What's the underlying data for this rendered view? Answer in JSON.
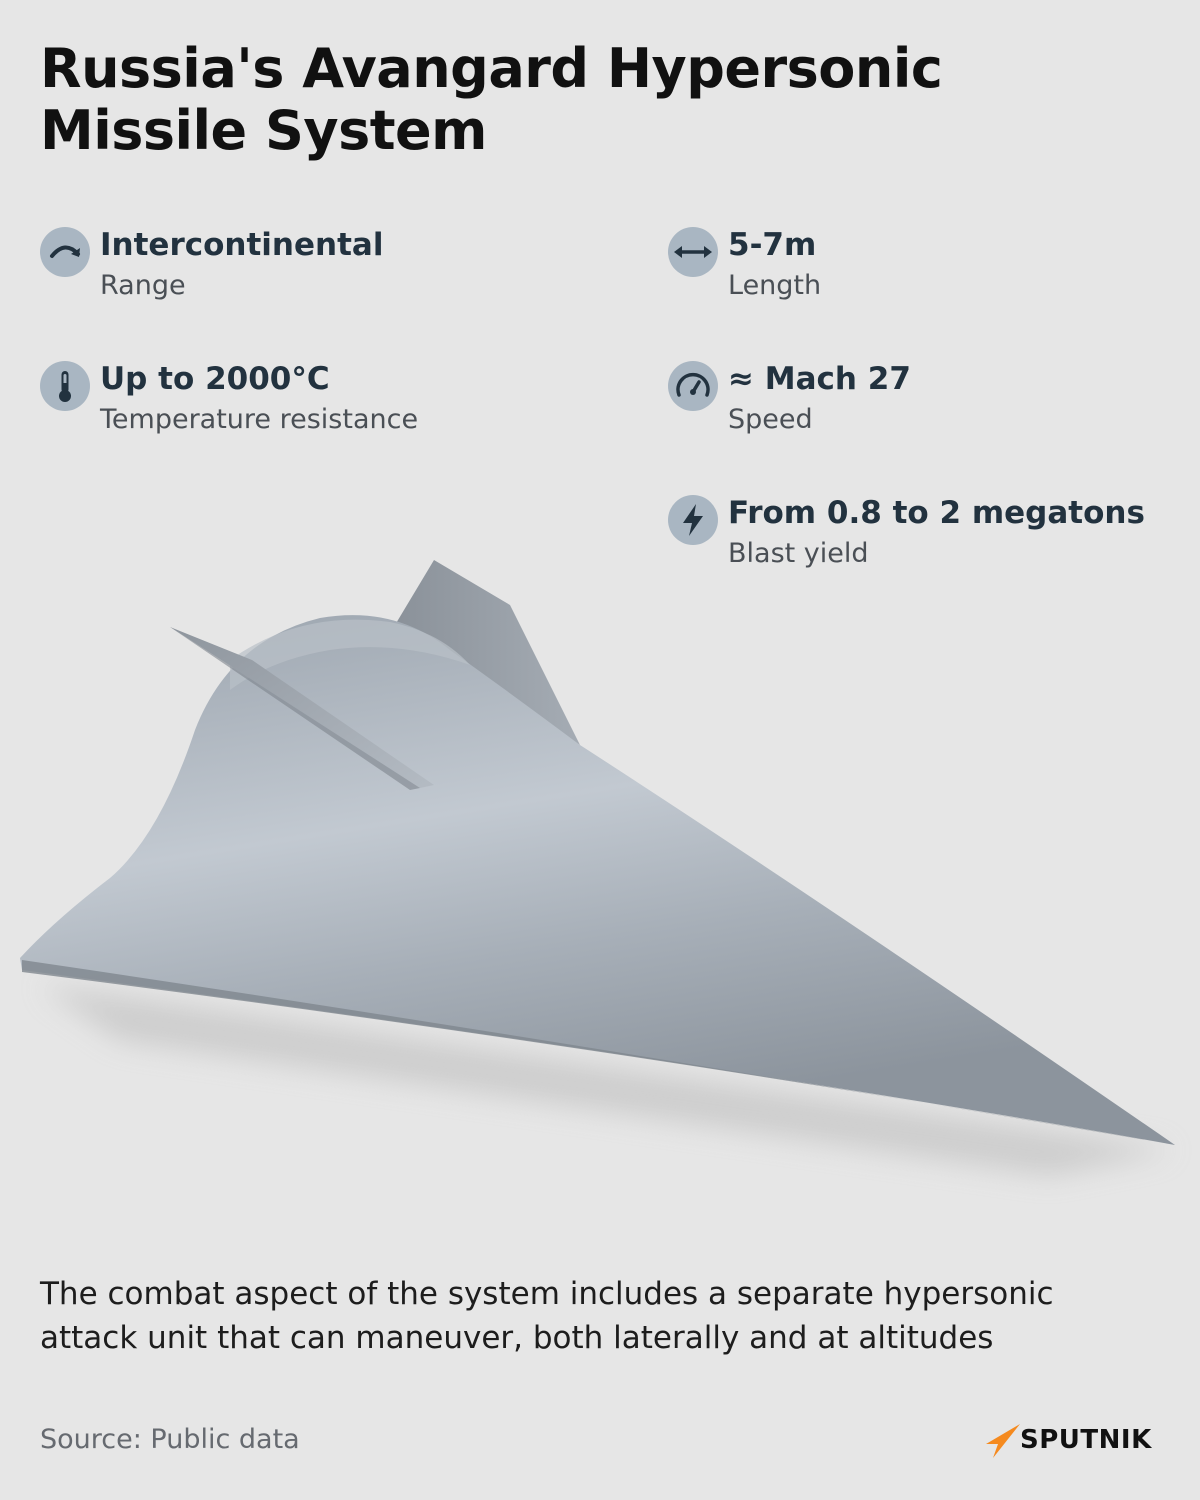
{
  "title": "Russia's Avangard Hypersonic Missile System",
  "colors": {
    "background": "#e6e6e6",
    "icon_circle": "#a9b6c2",
    "icon_glyph": "#22323f",
    "brand_accent": "#f58a1f"
  },
  "stats": [
    {
      "icon": "arc-arrow-icon",
      "value": "Intercontinental",
      "label": "Range"
    },
    {
      "icon": "double-arrow-icon",
      "value": "5-7m",
      "label": "Length"
    },
    {
      "icon": "thermometer-icon",
      "value": "Up to 2000°C",
      "label": "Temperature resistance"
    },
    {
      "icon": "speedometer-icon",
      "value": "≈ Mach 27",
      "label": "Speed"
    },
    {
      "icon": "lightning-icon",
      "value": "From 0.8 to 2 megatons",
      "label": "Blast yield"
    }
  ],
  "description": "The combat aspect of the system includes a separate hypersonic attack unit that can maneuver, both laterally and at altitudes",
  "source": "Source: Public data",
  "brand": {
    "name": "SPUTNIK",
    "icon": "sputnik-logo-icon"
  }
}
